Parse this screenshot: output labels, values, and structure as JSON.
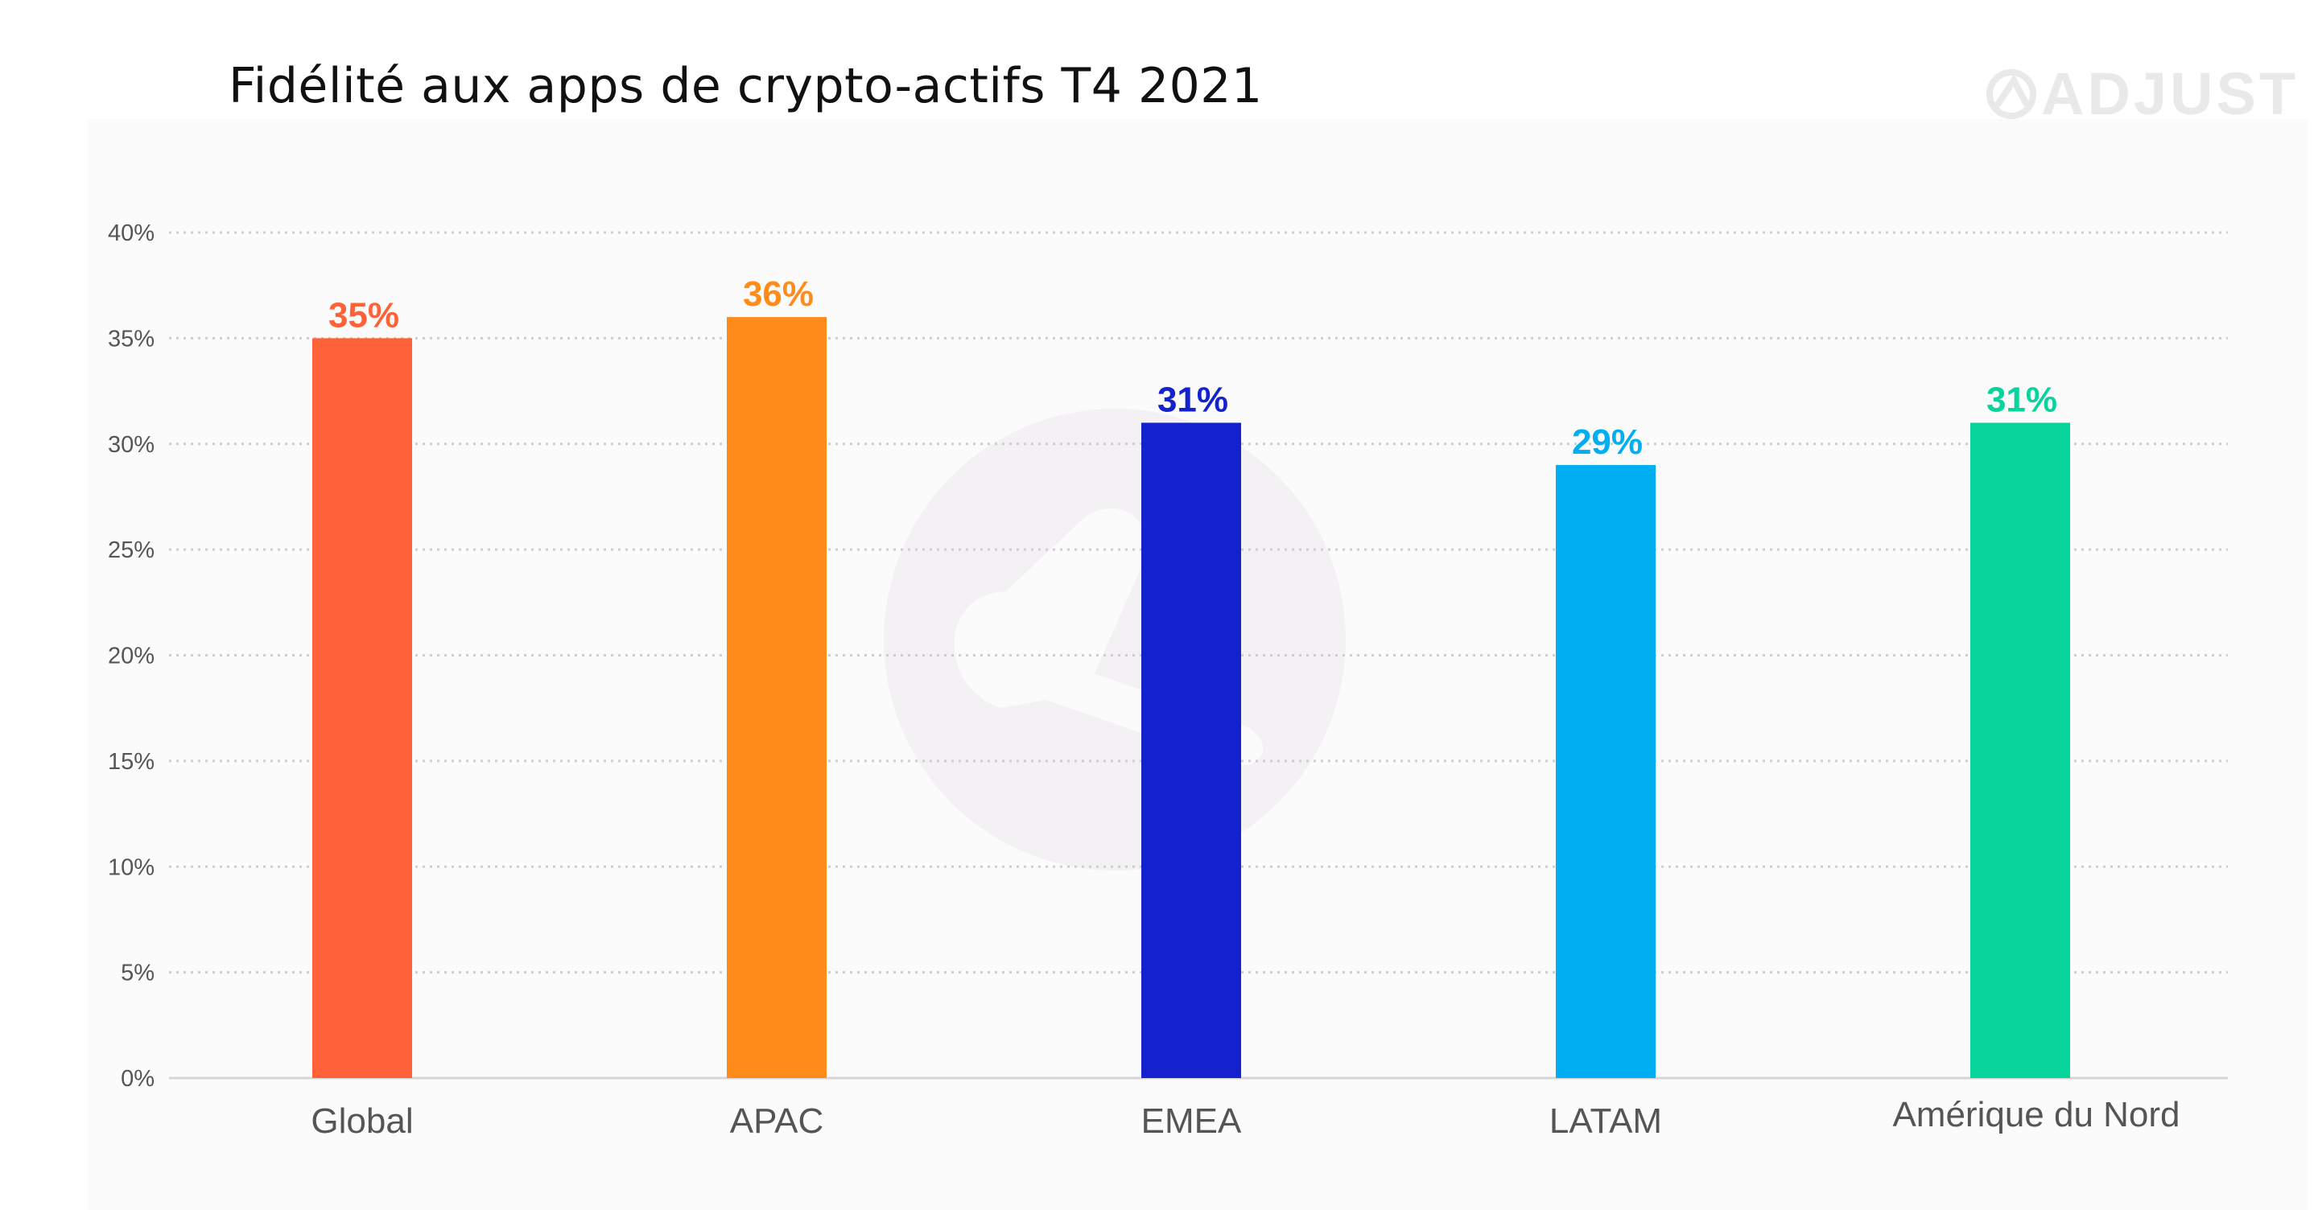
{
  "chart_data": {
    "type": "bar",
    "title": "Fidélité aux apps de crypto-actifs T4 2021",
    "brand": "ADJUST",
    "categories": [
      "Global",
      "APAC",
      "EMEA",
      "LATAM",
      "Amérique du Nord"
    ],
    "values": [
      35,
      36,
      31,
      29,
      31
    ],
    "value_labels": [
      "35%",
      "36%",
      "31%",
      "29%",
      "31%"
    ],
    "bar_colors": [
      "#ff6138",
      "#ff8c1a",
      "#1322cc",
      "#00aef2",
      "#06d49a"
    ],
    "ylim": [
      0,
      40
    ],
    "y_ticks": [
      0,
      5,
      10,
      15,
      20,
      25,
      30,
      35,
      40
    ],
    "y_tick_labels": [
      "0%",
      "5%",
      "10%",
      "15%",
      "20%",
      "25%",
      "30%",
      "35%",
      "40%"
    ],
    "xlabel": "",
    "ylabel": "",
    "grid": true,
    "legend": "none"
  },
  "colors": {
    "grid": "#cfcdd0",
    "axis_text": "#555555",
    "category_text": "#555555",
    "watermark": "#f3f1f3",
    "logo": "#e9e8ea"
  }
}
